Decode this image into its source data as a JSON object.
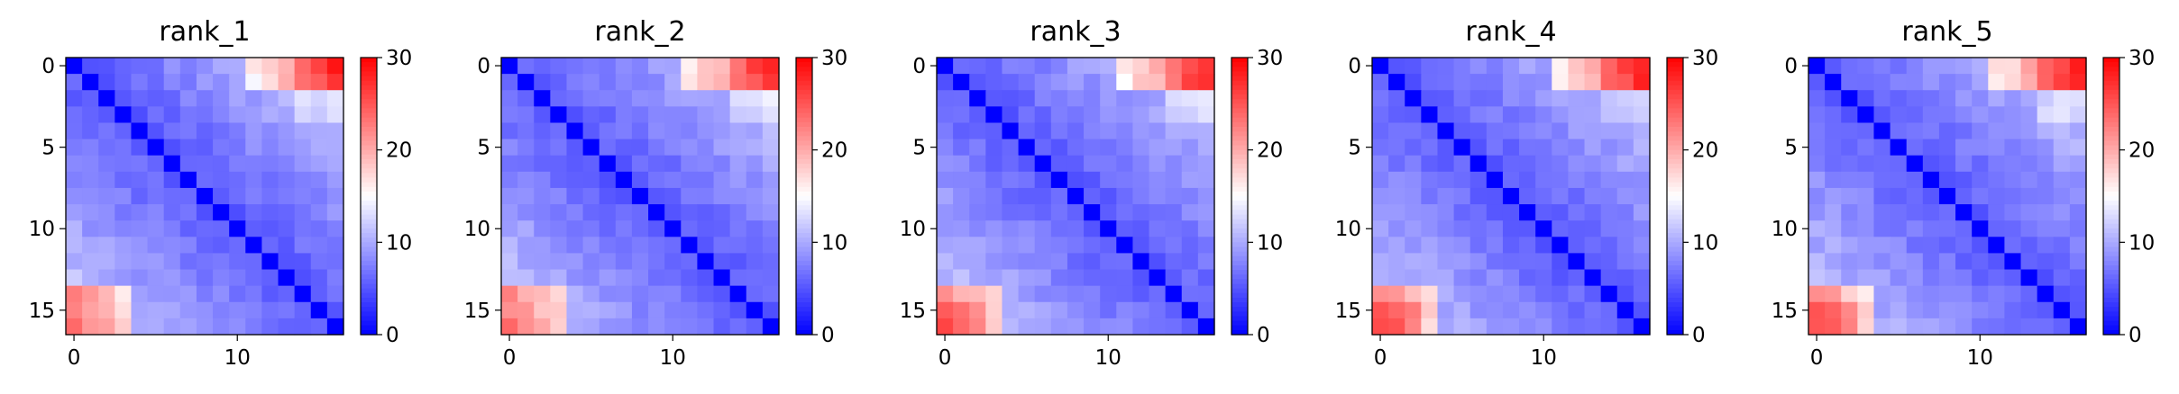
{
  "chart_data": [
    {
      "type": "heatmap",
      "title": "rank_1",
      "size": 17,
      "xticks": [
        0,
        10
      ],
      "yticks": [
        0,
        5,
        10,
        15
      ],
      "colorbar": {
        "ticks": [
          0,
          10,
          20,
          30
        ],
        "vmin": 0,
        "vmax": 30,
        "cmap": "bwr"
      },
      "values_note": "estimated"
    },
    {
      "type": "heatmap",
      "title": "rank_2",
      "size": 17,
      "xticks": [
        0,
        10
      ],
      "yticks": [
        0,
        5,
        10,
        15
      ],
      "colorbar": {
        "ticks": [
          0,
          10,
          20,
          30
        ],
        "vmin": 0,
        "vmax": 30,
        "cmap": "bwr"
      }
    },
    {
      "type": "heatmap",
      "title": "rank_3",
      "size": 17,
      "xticks": [
        0,
        10
      ],
      "yticks": [
        0,
        5,
        10,
        15
      ],
      "colorbar": {
        "ticks": [
          0,
          10,
          20,
          30
        ],
        "vmin": 0,
        "vmax": 30,
        "cmap": "bwr"
      }
    },
    {
      "type": "heatmap",
      "title": "rank_4",
      "size": 17,
      "xticks": [
        0,
        10
      ],
      "yticks": [
        0,
        5,
        10,
        15
      ],
      "colorbar": {
        "ticks": [
          0,
          10,
          20,
          30
        ],
        "vmin": 0,
        "vmax": 30,
        "cmap": "bwr"
      }
    },
    {
      "type": "heatmap",
      "title": "rank_5",
      "size": 17,
      "xticks": [
        0,
        10
      ],
      "yticks": [
        0,
        5,
        10,
        15
      ],
      "colorbar": {
        "ticks": [
          0,
          10,
          20,
          30
        ],
        "vmin": 0,
        "vmax": 30,
        "cmap": "bwr"
      }
    }
  ]
}
